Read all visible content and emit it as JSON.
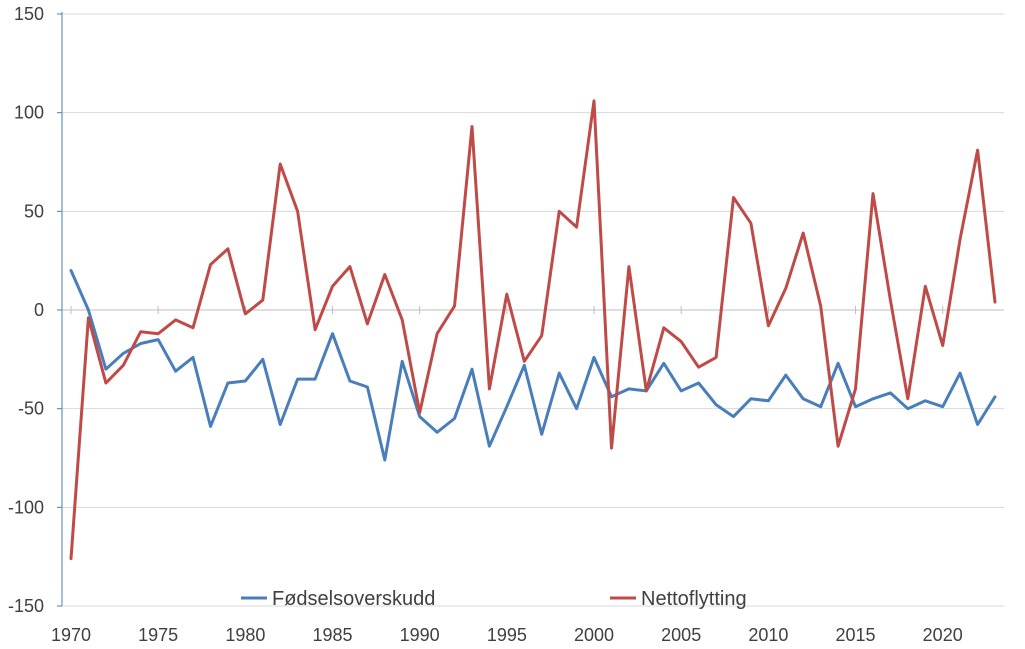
{
  "chart_data": {
    "type": "line",
    "title": "",
    "xlabel": "",
    "ylabel": "",
    "xlim": [
      1970,
      2023
    ],
    "ylim": [
      -150,
      150
    ],
    "y_ticks": [
      "150",
      "100",
      "50",
      "0",
      "-50",
      "-100",
      "-150"
    ],
    "x_ticks": [
      "1970",
      "1975",
      "1980",
      "1985",
      "1990",
      "1995",
      "2000",
      "2005",
      "2010",
      "2015",
      "2020"
    ],
    "grid": "horizontal",
    "legend_position": "bottom",
    "x": [
      1970,
      1971,
      1972,
      1973,
      1974,
      1975,
      1976,
      1977,
      1978,
      1979,
      1980,
      1981,
      1982,
      1983,
      1984,
      1985,
      1986,
      1987,
      1988,
      1989,
      1990,
      1991,
      1992,
      1993,
      1994,
      1995,
      1996,
      1997,
      1998,
      1999,
      2000,
      2001,
      2002,
      2003,
      2004,
      2005,
      2006,
      2007,
      2008,
      2009,
      2010,
      2011,
      2012,
      2013,
      2014,
      2015,
      2016,
      2017,
      2018,
      2019,
      2020,
      2021,
      2022,
      2023
    ],
    "series": [
      {
        "name": "Fødselsoverskudd",
        "color": "#4a7ebb",
        "values": [
          20,
          0,
          -30,
          -22,
          -17,
          -15,
          -31,
          -24,
          -59,
          -37,
          -36,
          -25,
          -58,
          -35,
          -35,
          -12,
          -36,
          -39,
          -76,
          -26,
          -54,
          -62,
          -55,
          -30,
          -69,
          -49,
          -28,
          -63,
          -32,
          -50,
          -24,
          -44,
          -40,
          -41,
          -27,
          -41,
          -37,
          -48,
          -54,
          -45,
          -46,
          -33,
          -45,
          -49,
          -27,
          -49,
          -45,
          -42,
          -50,
          -46,
          -49,
          -32,
          -58,
          -44
        ]
      },
      {
        "name": "Nettoflytting",
        "color": "#be4b48",
        "values": [
          -126,
          -4,
          -37,
          -28,
          -11,
          -12,
          -5,
          -9,
          23,
          31,
          -2,
          5,
          74,
          50,
          -10,
          12,
          22,
          -7,
          18,
          -5,
          -52,
          -12,
          2,
          93,
          -40,
          8,
          -26,
          -13,
          50,
          42,
          106,
          -70,
          22,
          -41,
          -9,
          -16,
          -29,
          -24,
          57,
          44,
          -8,
          11,
          39,
          2,
          -69,
          -40,
          59,
          5,
          -45,
          12,
          -18,
          36,
          81,
          4
        ]
      }
    ]
  }
}
